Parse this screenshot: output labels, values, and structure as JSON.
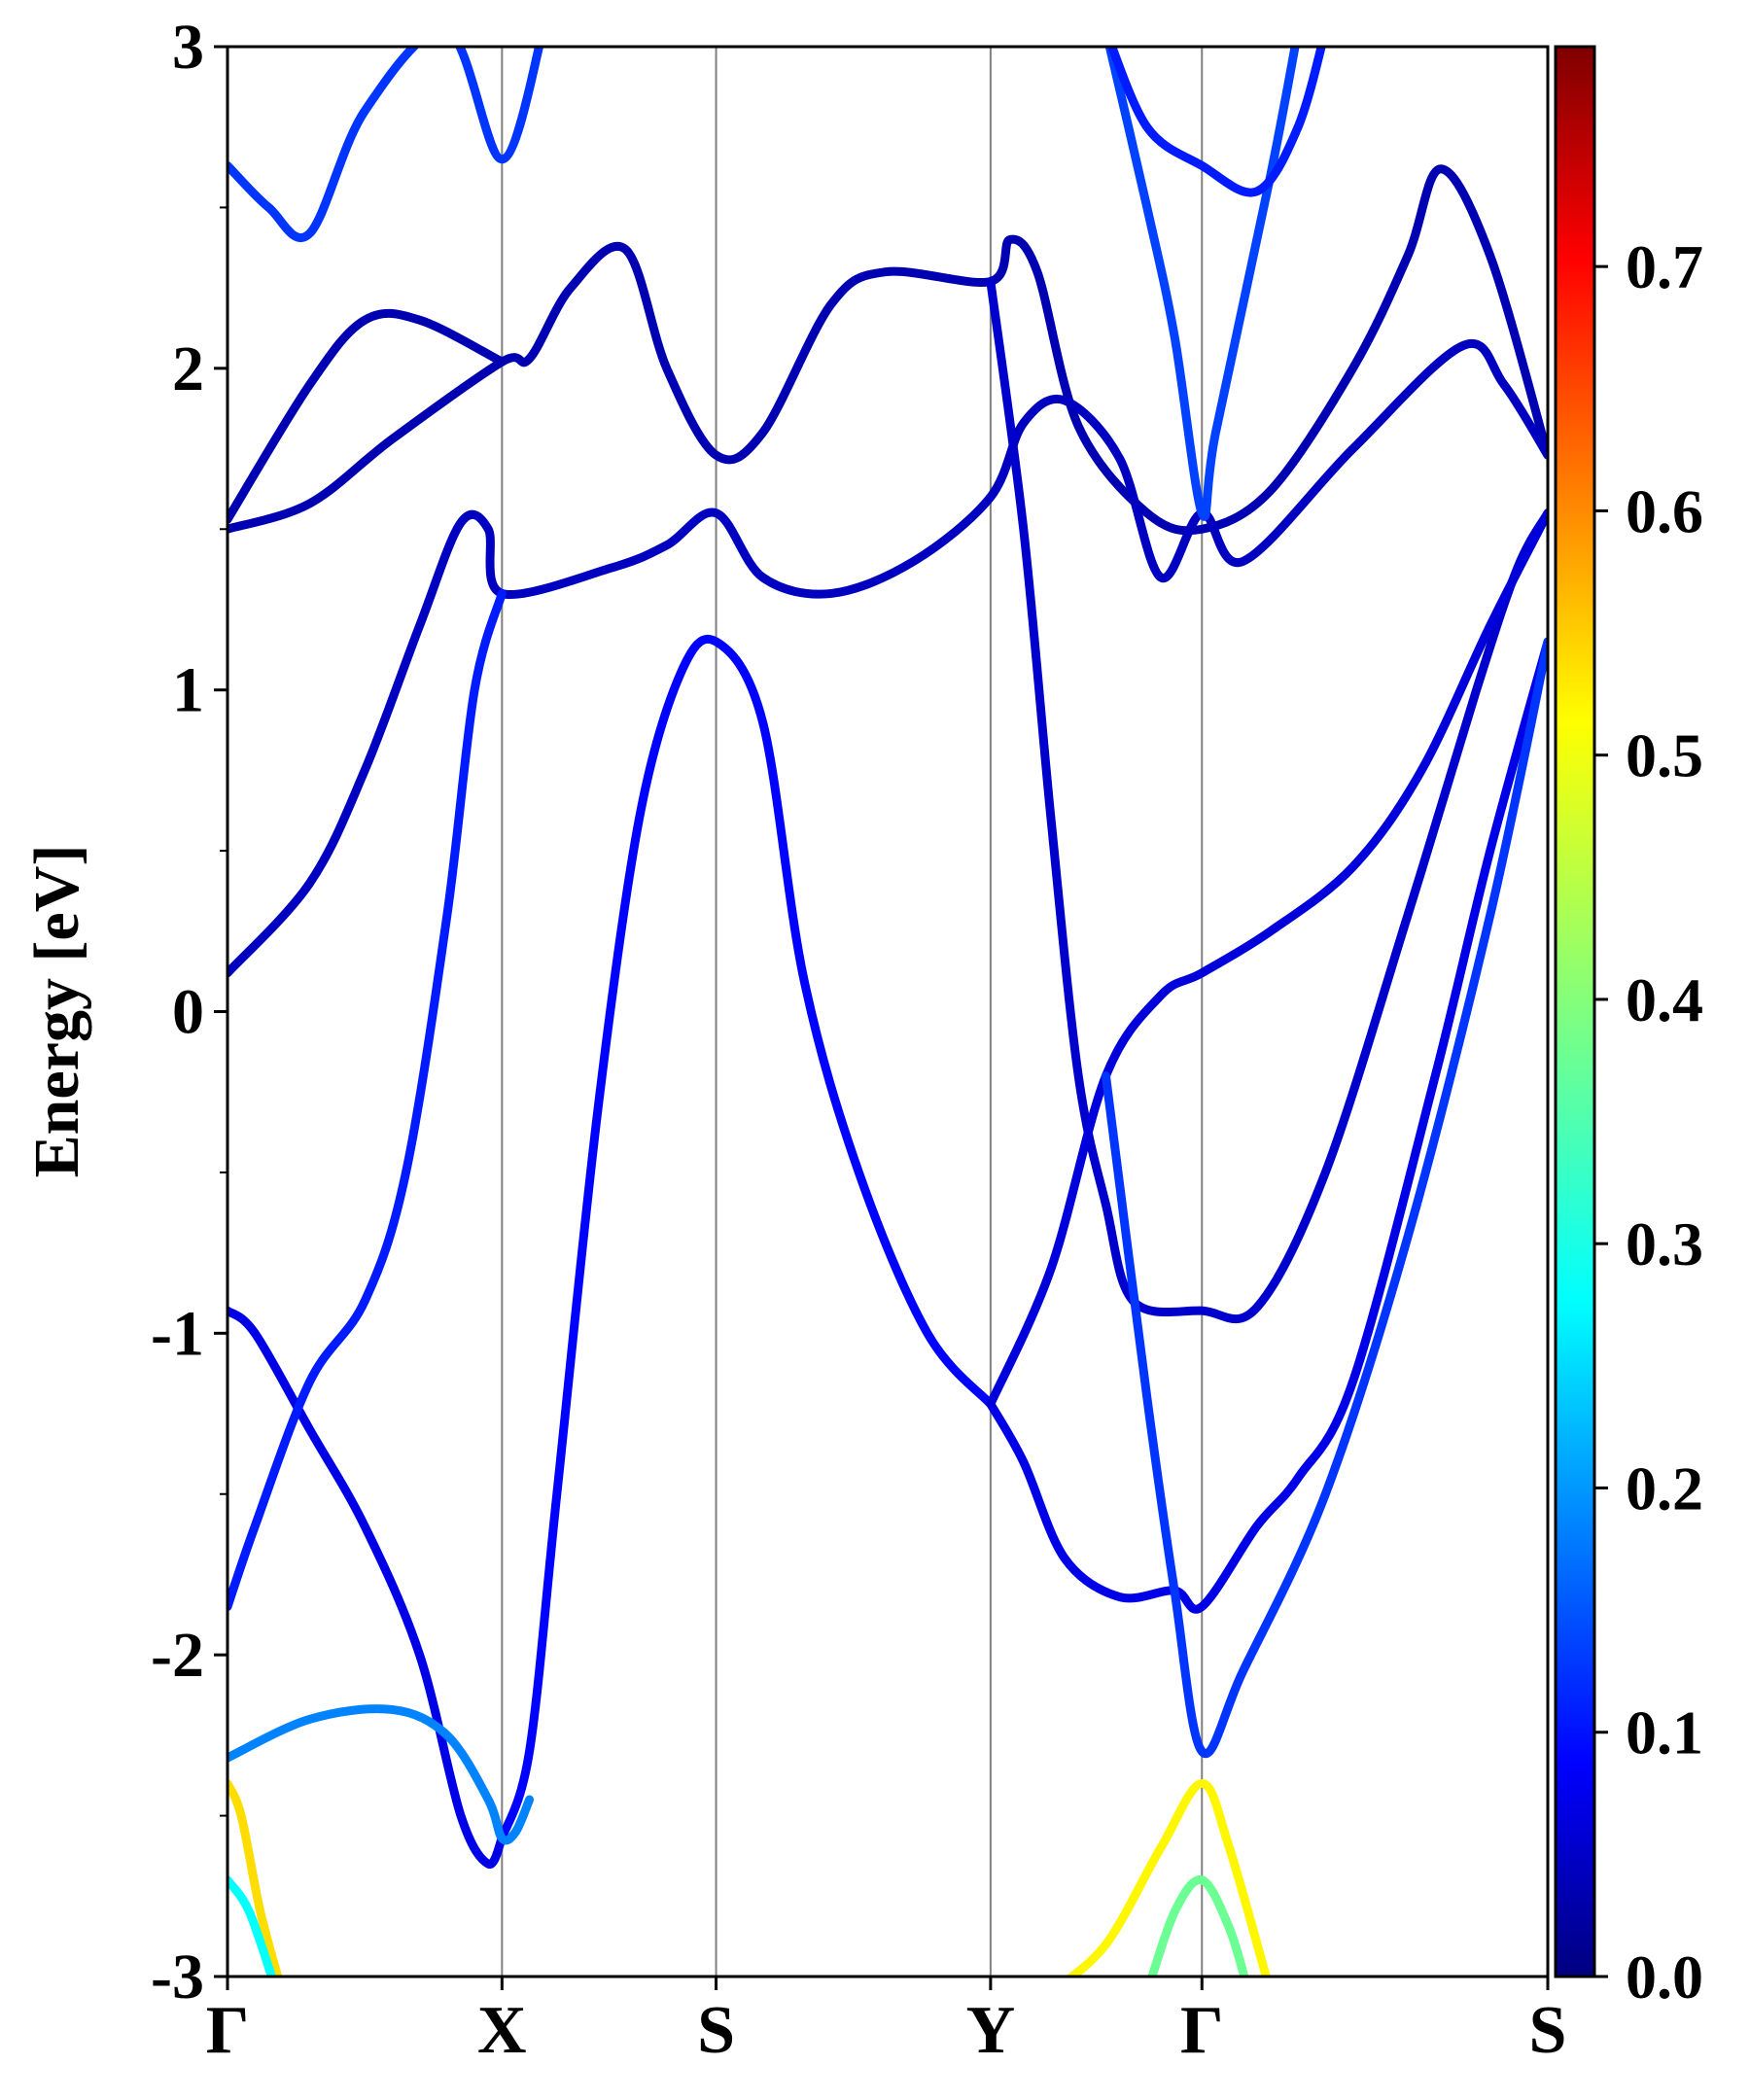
{
  "chart_data": {
    "type": "line",
    "title": "",
    "xlabel": "",
    "ylabel": "Energy [eV]",
    "ylim": [
      -3,
      3
    ],
    "yticks": [
      -3,
      -2,
      -1,
      0,
      1,
      2,
      3
    ],
    "ytick_labels": [
      "-3",
      "-2",
      "-1",
      "0",
      "1",
      "2",
      "3"
    ],
    "x_ticks": [
      {
        "label": "Γ",
        "k": 0.0
      },
      {
        "label": "X",
        "k": 1.0
      },
      {
        "label": "S",
        "k": 1.78
      },
      {
        "label": "Y",
        "k": 2.78
      },
      {
        "label": "Γ",
        "k": 3.55
      },
      {
        "label": "S",
        "k": 4.81
      }
    ],
    "grid": "vertical lines at high-symmetry points",
    "colormap": "jet",
    "colorbar": {
      "min": 0.0,
      "max": 0.79,
      "ticks": [
        0.0,
        0.1,
        0.2,
        0.3,
        0.4,
        0.5,
        0.6,
        0.7
      ],
      "tick_labels": [
        "0.0",
        "0.1",
        "0.2",
        "0.3",
        "0.4",
        "0.5",
        "0.6",
        "0.7"
      ]
    },
    "bands": [
      {
        "name": "",
        "weight": 0.04,
        "points": [
          [
            0,
            1.5
          ],
          [
            0.3,
            1.58
          ],
          [
            0.6,
            1.78
          ],
          [
            1.0,
            2.02
          ],
          [
            1.1,
            2.03
          ],
          [
            1.25,
            2.25
          ],
          [
            1.45,
            2.37
          ],
          [
            1.6,
            2.0
          ],
          [
            1.78,
            1.73
          ],
          [
            1.95,
            1.8
          ],
          [
            2.2,
            2.2
          ],
          [
            2.4,
            2.3
          ],
          [
            2.78,
            2.27
          ],
          [
            2.85,
            2.4
          ],
          [
            2.95,
            2.3
          ],
          [
            3.1,
            1.82
          ],
          [
            3.35,
            1.55
          ],
          [
            3.55,
            1.5
          ],
          [
            3.8,
            1.62
          ],
          [
            4.1,
            2.0
          ],
          [
            4.3,
            2.35
          ],
          [
            4.42,
            2.62
          ],
          [
            4.6,
            2.35
          ],
          [
            4.81,
            1.73
          ]
        ]
      },
      {
        "name": "",
        "weight": 0.04,
        "points": [
          [
            0,
            1.53
          ],
          [
            0.3,
            1.95
          ],
          [
            0.5,
            2.15
          ],
          [
            0.7,
            2.15
          ],
          [
            1.0,
            2.02
          ]
        ]
      },
      {
        "name": "",
        "weight": 0.05,
        "points": [
          [
            0,
            0.12
          ],
          [
            0.3,
            0.4
          ],
          [
            0.5,
            0.75
          ],
          [
            0.7,
            1.2
          ],
          [
            0.85,
            1.52
          ],
          [
            0.95,
            1.5
          ],
          [
            1.0,
            1.3
          ],
          [
            1.4,
            1.38
          ],
          [
            1.6,
            1.45
          ],
          [
            1.78,
            1.55
          ],
          [
            1.95,
            1.35
          ],
          [
            2.2,
            1.3
          ],
          [
            2.5,
            1.4
          ],
          [
            2.78,
            1.6
          ],
          [
            2.9,
            1.83
          ],
          [
            3.05,
            1.9
          ],
          [
            3.25,
            1.72
          ],
          [
            3.4,
            1.35
          ],
          [
            3.55,
            1.55
          ],
          [
            3.7,
            1.4
          ],
          [
            4.1,
            1.75
          ],
          [
            4.5,
            2.07
          ],
          [
            4.65,
            1.95
          ],
          [
            4.81,
            1.73
          ]
        ]
      },
      {
        "name": "",
        "weight": 0.06,
        "points": [
          [
            2.78,
            2.27
          ],
          [
            2.9,
            1.5
          ],
          [
            3.0,
            0.6
          ],
          [
            3.1,
            -0.2
          ],
          [
            3.2,
            -0.6
          ],
          [
            3.3,
            -0.9
          ],
          [
            3.55,
            -0.93
          ],
          [
            3.75,
            -0.92
          ],
          [
            4.0,
            -0.5
          ],
          [
            4.3,
            0.3
          ],
          [
            4.55,
            1.0
          ],
          [
            4.7,
            1.38
          ],
          [
            4.81,
            1.55
          ]
        ]
      },
      {
        "name": "",
        "weight": 0.08,
        "points": [
          [
            0,
            -0.93
          ],
          [
            0.1,
            -1.0
          ],
          [
            0.3,
            -1.3
          ],
          [
            0.5,
            -1.6
          ],
          [
            0.7,
            -2.0
          ],
          [
            0.85,
            -2.5
          ],
          [
            0.95,
            -2.65
          ],
          [
            1.0,
            -2.57
          ]
        ]
      },
      {
        "name": "",
        "weight": 0.12,
        "points": [
          [
            0,
            -1.85
          ],
          [
            0.1,
            -1.6
          ],
          [
            0.3,
            -1.15
          ],
          [
            0.5,
            -0.9
          ],
          [
            0.65,
            -0.5
          ],
          [
            0.8,
            0.3
          ],
          [
            0.9,
            1.0
          ],
          [
            1.0,
            1.3
          ]
        ]
      },
      {
        "name": "",
        "weight": 0.1,
        "points": [
          [
            1.0,
            -2.57
          ],
          [
            1.1,
            -2.3
          ],
          [
            1.2,
            -1.5
          ],
          [
            1.35,
            -0.3
          ],
          [
            1.5,
            0.6
          ],
          [
            1.65,
            1.05
          ],
          [
            1.78,
            1.15
          ],
          [
            1.95,
            0.9
          ],
          [
            2.1,
            0.1
          ],
          [
            2.3,
            -0.5
          ],
          [
            2.55,
            -1.0
          ],
          [
            2.78,
            -1.22
          ]
        ]
      },
      {
        "name": "",
        "weight": 0.08,
        "points": [
          [
            2.78,
            -1.22
          ],
          [
            2.9,
            -1.4
          ],
          [
            3.05,
            -1.7
          ],
          [
            3.25,
            -1.82
          ],
          [
            3.45,
            -1.8
          ],
          [
            3.55,
            -1.85
          ],
          [
            3.75,
            -1.6
          ],
          [
            3.9,
            -1.45
          ],
          [
            4.1,
            -1.15
          ],
          [
            4.4,
            -0.2
          ],
          [
            4.6,
            0.5
          ],
          [
            4.81,
            1.15
          ]
        ]
      },
      {
        "name": "",
        "weight": 0.07,
        "points": [
          [
            2.78,
            -1.22
          ],
          [
            3.0,
            -0.8
          ],
          [
            3.2,
            -0.2
          ],
          [
            3.4,
            0.05
          ],
          [
            3.55,
            0.12
          ],
          [
            3.8,
            0.25
          ],
          [
            4.1,
            0.45
          ],
          [
            4.35,
            0.75
          ],
          [
            4.6,
            1.2
          ],
          [
            4.81,
            1.55
          ]
        ]
      },
      {
        "name": "",
        "weight": 0.15,
        "points": [
          [
            3.2,
            3.05
          ],
          [
            3.35,
            2.5
          ],
          [
            3.45,
            2.1
          ],
          [
            3.55,
            1.55
          ],
          [
            3.6,
            1.8
          ],
          [
            3.8,
            2.6
          ],
          [
            3.9,
            3.05
          ]
        ]
      },
      {
        "name": "",
        "weight": 0.14,
        "points": [
          [
            3.2,
            -0.2
          ],
          [
            3.35,
            -1.2
          ],
          [
            3.45,
            -1.8
          ],
          [
            3.55,
            -2.3
          ],
          [
            3.7,
            -2.05
          ],
          [
            4.0,
            -1.5
          ],
          [
            4.3,
            -0.7
          ],
          [
            4.6,
            0.3
          ],
          [
            4.81,
            1.15
          ]
        ]
      },
      {
        "name": "",
        "weight": 0.12,
        "points": [
          [
            3.2,
            3.05
          ],
          [
            3.35,
            2.75
          ],
          [
            3.55,
            2.63
          ],
          [
            3.75,
            2.55
          ],
          [
            3.9,
            2.75
          ],
          [
            4.0,
            3.05
          ]
        ]
      },
      {
        "name": "",
        "weight": 0.14,
        "points": [
          [
            0,
            2.63
          ],
          [
            0.15,
            2.5
          ],
          [
            0.3,
            2.42
          ],
          [
            0.5,
            2.8
          ],
          [
            0.8,
            3.05
          ],
          [
            1.0,
            2.65
          ],
          [
            1.15,
            3.05
          ]
        ]
      },
      {
        "name": "",
        "weight": 0.2,
        "points": [
          [
            0,
            -2.32
          ],
          [
            0.3,
            -2.2
          ],
          [
            0.6,
            -2.17
          ],
          [
            0.8,
            -2.25
          ],
          [
            0.95,
            -2.45
          ],
          [
            1.0,
            -2.57
          ],
          [
            1.05,
            -2.55
          ],
          [
            1.1,
            -2.45
          ]
        ]
      },
      {
        "name": "",
        "weight": 0.52,
        "points": [
          [
            0,
            -2.4
          ],
          [
            0.05,
            -2.5
          ],
          [
            0.12,
            -2.8
          ],
          [
            0.2,
            -3.05
          ]
        ]
      },
      {
        "name": "",
        "weight": 0.3,
        "points": [
          [
            0,
            -2.7
          ],
          [
            0.08,
            -2.8
          ],
          [
            0.18,
            -3.05
          ]
        ]
      },
      {
        "name": "",
        "weight": 0.5,
        "points": [
          [
            3.0,
            -3.05
          ],
          [
            3.2,
            -2.9
          ],
          [
            3.4,
            -2.6
          ],
          [
            3.55,
            -2.4
          ],
          [
            3.65,
            -2.6
          ],
          [
            3.8,
            -3.05
          ]
        ]
      },
      {
        "name": "",
        "weight": 0.38,
        "points": [
          [
            3.35,
            -3.05
          ],
          [
            3.45,
            -2.8
          ],
          [
            3.55,
            -2.7
          ],
          [
            3.65,
            -2.85
          ],
          [
            3.72,
            -3.05
          ]
        ]
      }
    ]
  }
}
